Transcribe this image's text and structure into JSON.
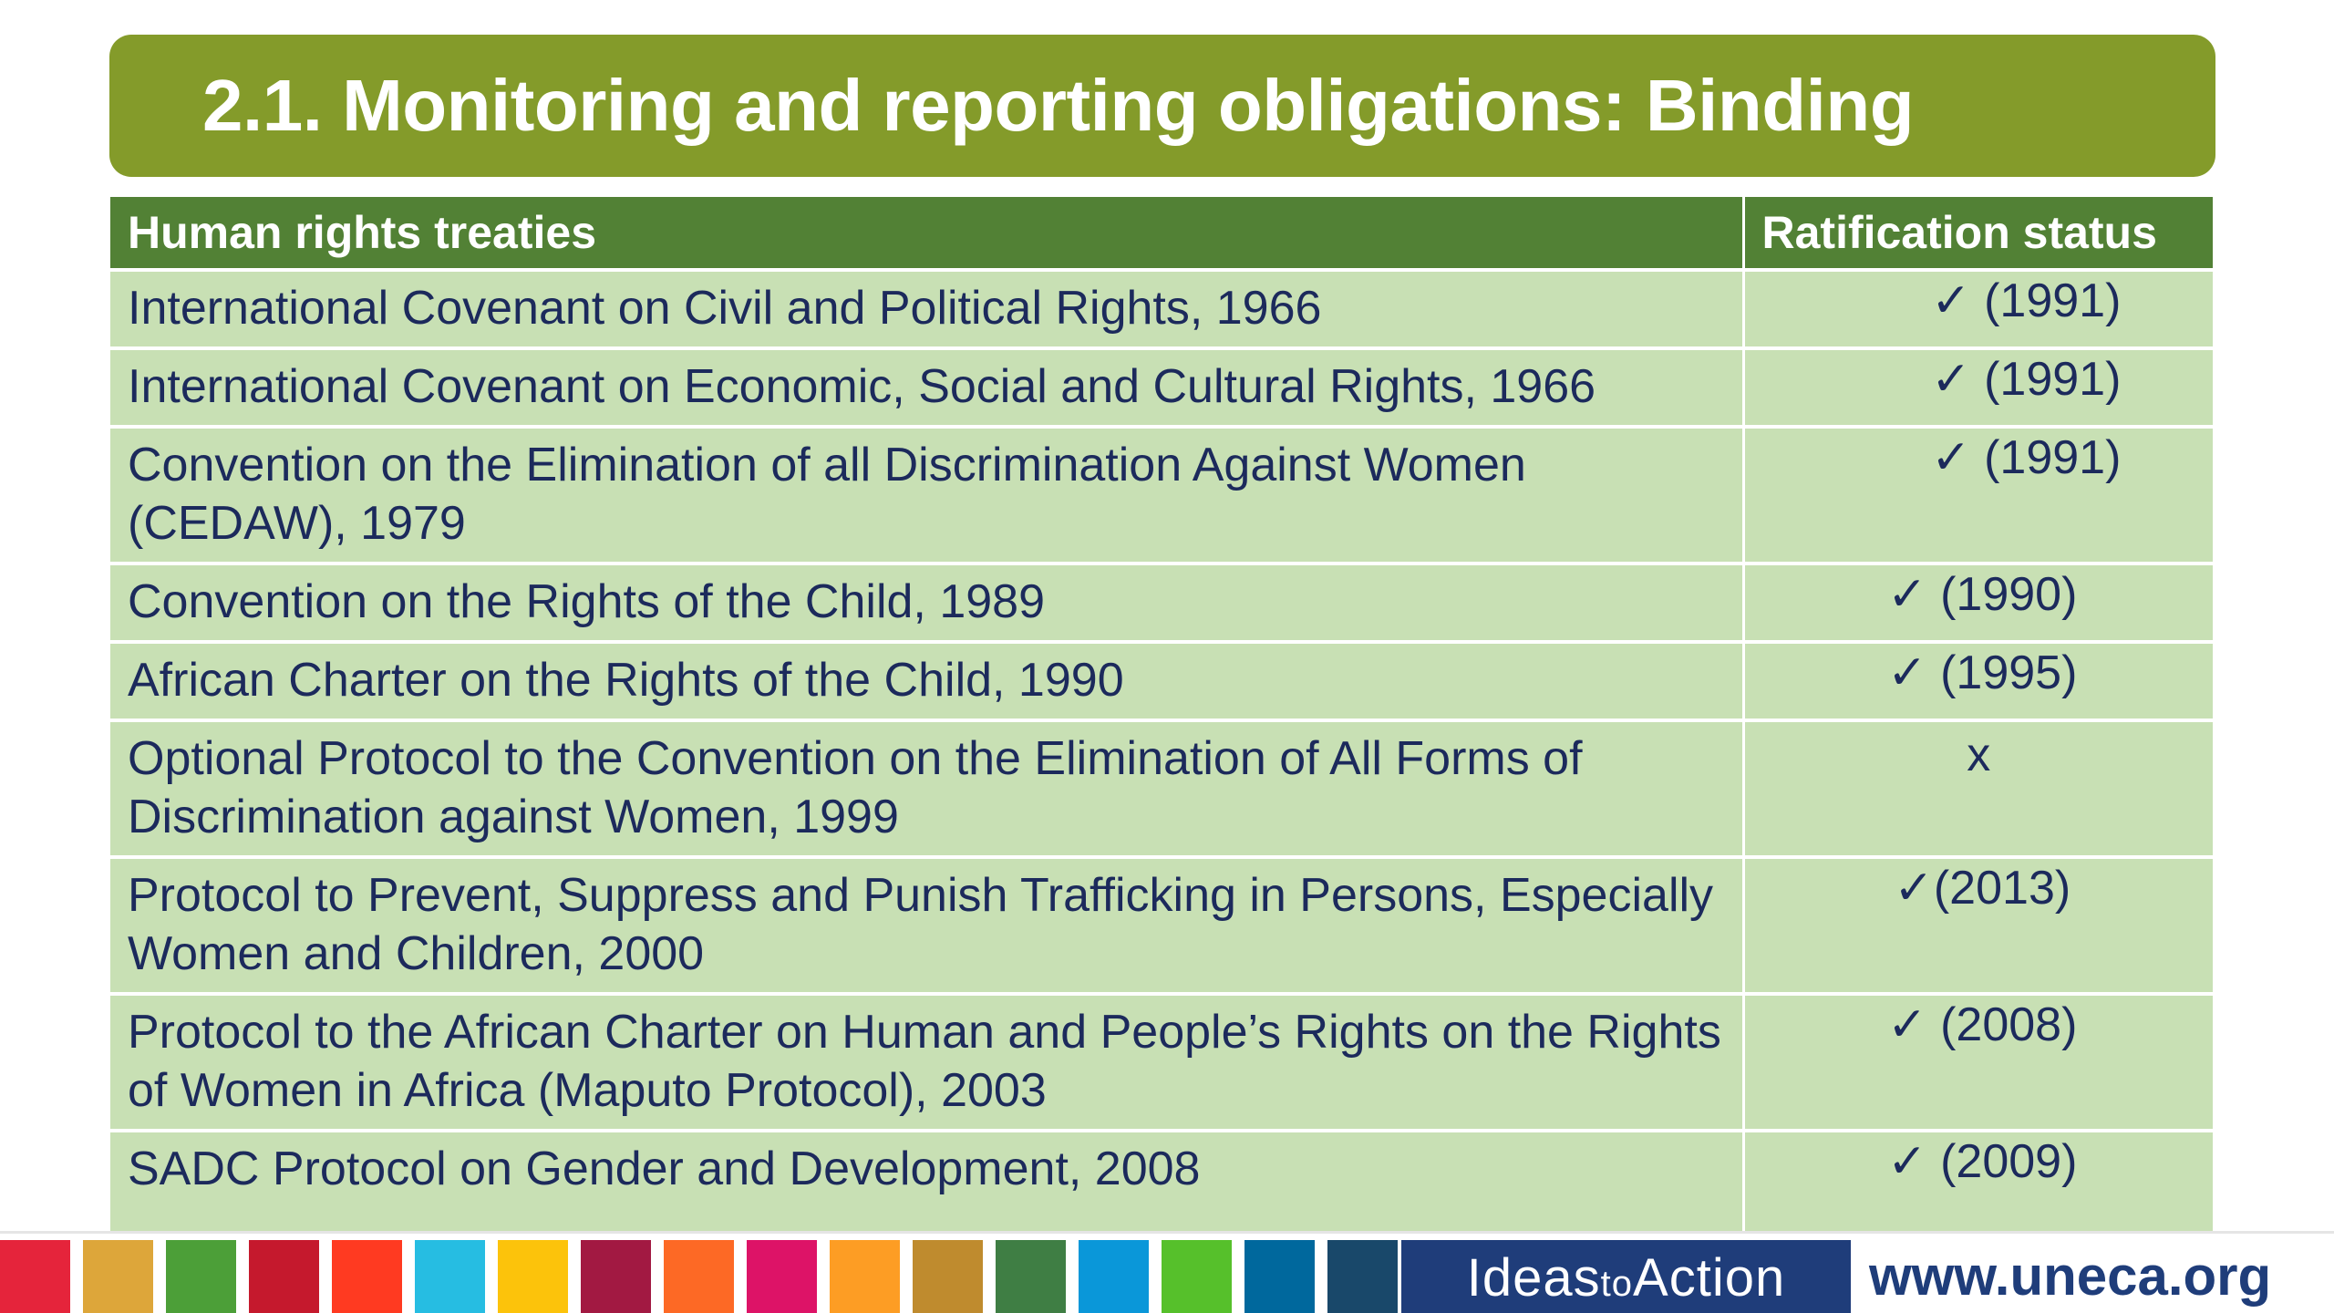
{
  "slide": {
    "title": "2.1. Monitoring and reporting obligations: Binding"
  },
  "table": {
    "headers": [
      "Human rights treaties",
      "Ratification status"
    ],
    "rows": [
      {
        "treaty": "International Covenant on Civil and Political Rights, 1966",
        "status": "✓ (1991)"
      },
      {
        "treaty": "International Covenant on Economic, Social and Cultural Rights, 1966",
        "status": "✓ (1991)"
      },
      {
        "treaty": "Convention on the Elimination of all Discrimination Against Women (CEDAW), 1979",
        "status": "✓ (1991)"
      },
      {
        "treaty": "Convention on the Rights of the Child, 1989",
        "status": "✓ (1990)"
      },
      {
        "treaty": "African Charter on the Rights of the Child, 1990",
        "status": "✓ (1995)"
      },
      {
        "treaty": "Optional Protocol to the Convention on the Elimination of All Forms of Discrimination against Women, 1999",
        "status": "x"
      },
      {
        "treaty": "Protocol to Prevent, Suppress and Punish Trafficking in Persons, Especially Women and Children, 2000",
        "status": "✓(2013)"
      },
      {
        "treaty": "Protocol to the African Charter on Human and People’s Rights on the Rights of Women in Africa (Maputo Protocol), 2003",
        "status": "✓ (2008)"
      },
      {
        "treaty": "SADC Protocol on Gender and Development, 2008",
        "status": "✓ (2009)"
      }
    ]
  },
  "footer": {
    "sdg_colors": [
      "#e5243b",
      "#dda63a",
      "#4c9f38",
      "#c5192d",
      "#ff3a21",
      "#26bde2",
      "#fcc30b",
      "#a21942",
      "#fd6925",
      "#dd1367",
      "#fd9d24",
      "#bf8b2e",
      "#3f7e44",
      "#0a97d9",
      "#56c02b",
      "#00689d",
      "#19486a"
    ],
    "brand_part1": "Ideas",
    "brand_part2": "to",
    "brand_part3": "Action",
    "website": "www.uneca.org"
  },
  "colors": {
    "title_bg": "#849b2a",
    "header_bg": "#528135",
    "row_bg": "#c8e0b4",
    "text": "#1c2a5c",
    "brand_bg": "#1f3d7a"
  }
}
